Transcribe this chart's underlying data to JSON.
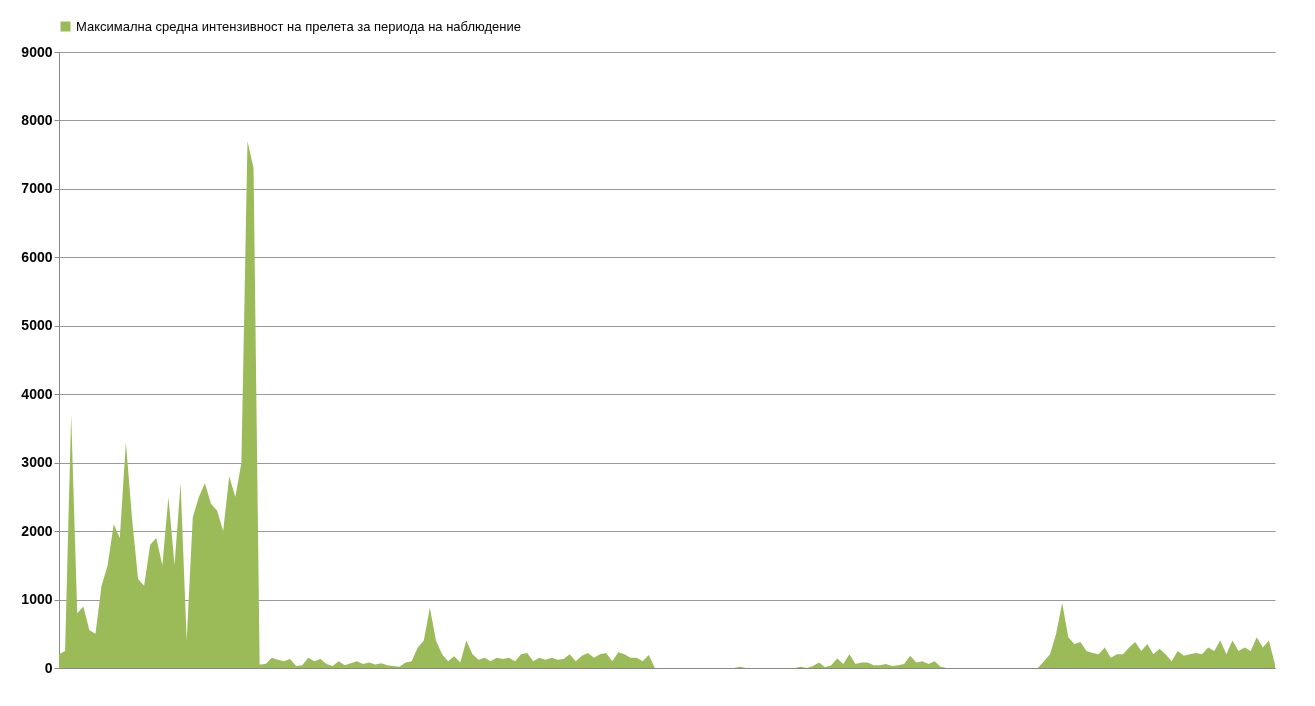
{
  "chart_data": {
    "type": "area",
    "categories": [
      null,
      null,
      null,
      null,
      null,
      null,
      null,
      null,
      null,
      null,
      null,
      null,
      null,
      null,
      null,
      null,
      null,
      null,
      null,
      null,
      null,
      null,
      null,
      null,
      null,
      null,
      null,
      null,
      null,
      null,
      null,
      null,
      null,
      null,
      null,
      null,
      null,
      null,
      null,
      null,
      null,
      null,
      null,
      null,
      null,
      null,
      null,
      null,
      null,
      null,
      null,
      null,
      null,
      null,
      null,
      null,
      null,
      null,
      null,
      null,
      null,
      null,
      null,
      null,
      null,
      null,
      null,
      null,
      null,
      null,
      null,
      null,
      null,
      null,
      null,
      null,
      null,
      null,
      null,
      null,
      null,
      null,
      null,
      null,
      null,
      null,
      null,
      null,
      null,
      null,
      null,
      null,
      null,
      null,
      null,
      null,
      null,
      null,
      null,
      null,
      null,
      null,
      null,
      null,
      null,
      null,
      null,
      null,
      null,
      null,
      null,
      null,
      null,
      null,
      null,
      null,
      null,
      null,
      null,
      null,
      null,
      null,
      null,
      null,
      null,
      null,
      null,
      null,
      null,
      null,
      null,
      null,
      null,
      null,
      null,
      null,
      null,
      null,
      null,
      null,
      null,
      null,
      null,
      null,
      null,
      null,
      null,
      null,
      null,
      null,
      null,
      null,
      null,
      null,
      null,
      null,
      null,
      null,
      null,
      null,
      null,
      null,
      null,
      null,
      null,
      null,
      null,
      null,
      null,
      null,
      null,
      null,
      null,
      null,
      null,
      null,
      null,
      null,
      null,
      null,
      null,
      null,
      null,
      null,
      null,
      null,
      null,
      null,
      null,
      null,
      null,
      null,
      null,
      null,
      null,
      null,
      null,
      null,
      null,
      null,
      null
    ],
    "series": [
      {
        "name": "Максимална средна интензивност на прелета за периода на наблюдение",
        "color": "#9bbb59",
        "values": [
          200,
          250,
          3700,
          800,
          900,
          550,
          500,
          1200,
          1500,
          2100,
          1900,
          3300,
          2200,
          1300,
          1200,
          1800,
          1900,
          1500,
          2500,
          1500,
          2700,
          400,
          2200,
          2500,
          2700,
          2400,
          2300,
          2000,
          2800,
          2500,
          3000,
          7700,
          7300,
          50,
          60,
          150,
          120,
          100,
          130,
          30,
          40,
          150,
          100,
          130,
          60,
          30,
          100,
          40,
          70,
          100,
          60,
          80,
          50,
          70,
          40,
          30,
          20,
          80,
          100,
          300,
          400,
          880,
          400,
          200,
          100,
          170,
          80,
          400,
          200,
          120,
          150,
          100,
          150,
          130,
          150,
          100,
          200,
          220,
          100,
          150,
          120,
          150,
          120,
          130,
          200,
          100,
          180,
          220,
          150,
          200,
          220,
          100,
          230,
          200,
          150,
          150,
          100,
          190,
          0,
          0,
          0,
          0,
          0,
          0,
          0,
          0,
          0,
          0,
          0,
          0,
          0,
          0,
          20,
          0,
          0,
          0,
          0,
          0,
          0,
          0,
          0,
          0,
          20,
          0,
          30,
          80,
          10,
          40,
          140,
          60,
          200,
          60,
          80,
          80,
          40,
          40,
          60,
          30,
          40,
          60,
          180,
          80,
          100,
          60,
          100,
          20,
          0,
          0,
          0,
          0,
          0,
          0,
          0,
          0,
          0,
          0,
          0,
          0,
          0,
          0,
          0,
          0,
          100,
          200,
          500,
          950,
          450,
          350,
          380,
          250,
          220,
          200,
          300,
          150,
          200,
          200,
          300,
          380,
          250,
          350,
          200,
          280,
          200,
          100,
          250,
          180,
          200,
          220,
          200,
          300,
          250,
          400,
          200,
          400,
          250,
          300,
          250,
          450,
          300,
          400,
          50
        ]
      }
    ],
    "ylim": [
      0,
      9000
    ],
    "yticks": [
      0,
      1000,
      2000,
      3000,
      4000,
      5000,
      6000,
      7000,
      8000,
      9000
    ],
    "grid": "y",
    "legend": "top"
  }
}
